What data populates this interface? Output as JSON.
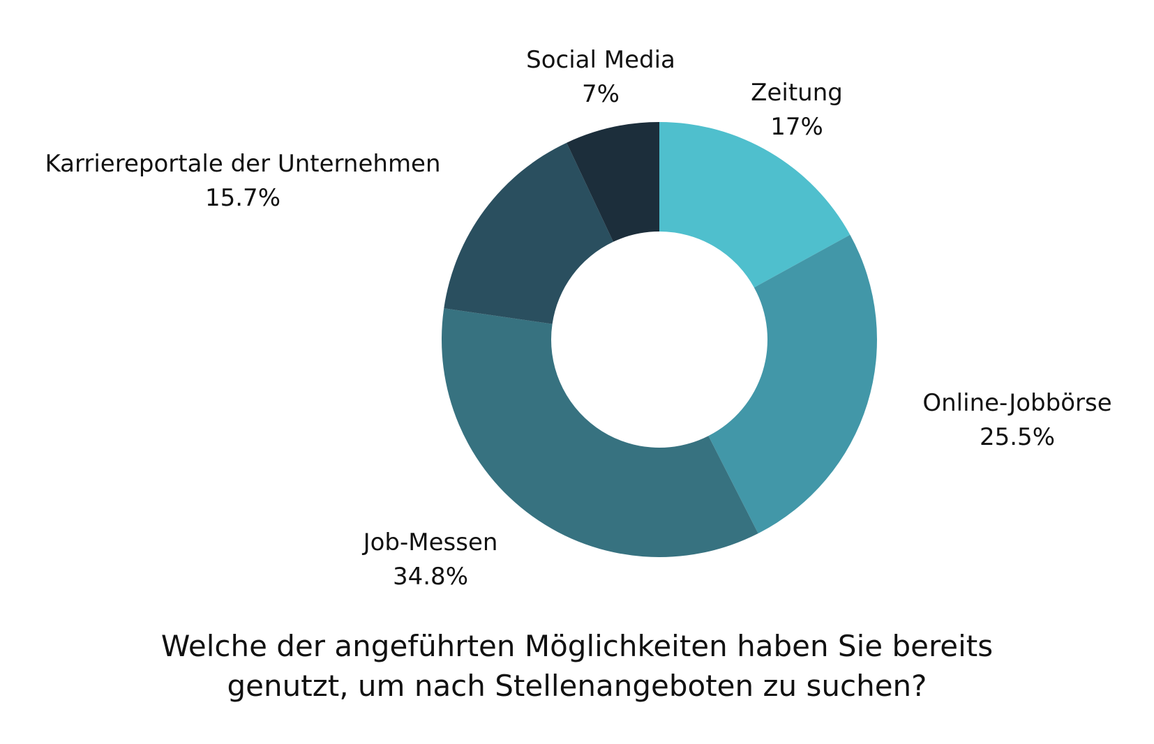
{
  "chart_data": {
    "type": "pie",
    "style": "donut",
    "title_lines": [
      "Welche der angeführten Möglichkeiten haben Sie bereits",
      "genutzt, um nach Stellenangeboten zu suchen?"
    ],
    "categories": [
      "Zeitung",
      "Online-Jobbörse",
      "Job-Messen",
      "Karriereportale der Unternehmen",
      "Social Media"
    ],
    "values": [
      17,
      25.5,
      34.8,
      15.7,
      7
    ],
    "value_labels": [
      "17%",
      "25.5%",
      "34.8%",
      "15.7%",
      "7%"
    ],
    "colors": [
      "#4fbfcd",
      "#4297a8",
      "#377280",
      "#2a4f5f",
      "#1c2e3b"
    ],
    "legend": "none",
    "start_angle": "12 o'clock",
    "direction": "clockwise"
  }
}
